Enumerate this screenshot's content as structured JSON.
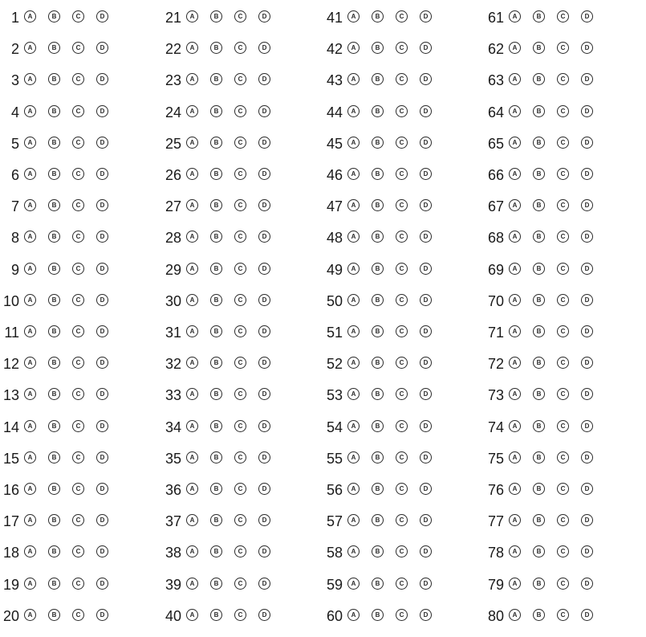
{
  "options": [
    "A",
    "B",
    "C",
    "D"
  ],
  "columns": [
    {
      "questions": [
        "1",
        "2",
        "3",
        "4",
        "5",
        "6",
        "7",
        "8",
        "9",
        "10",
        "11",
        "12",
        "13",
        "14",
        "15",
        "16",
        "17",
        "18",
        "19",
        "20"
      ]
    },
    {
      "questions": [
        "21",
        "22",
        "23",
        "24",
        "25",
        "26",
        "27",
        "28",
        "29",
        "30",
        "31",
        "32",
        "33",
        "34",
        "35",
        "36",
        "37",
        "38",
        "39",
        "40"
      ]
    },
    {
      "questions": [
        "41",
        "42",
        "43",
        "44",
        "45",
        "46",
        "47",
        "48",
        "49",
        "50",
        "51",
        "52",
        "53",
        "54",
        "55",
        "56",
        "57",
        "58",
        "59",
        "60"
      ]
    },
    {
      "questions": [
        "61",
        "62",
        "63",
        "64",
        "65",
        "66",
        "67",
        "68",
        "69",
        "70",
        "71",
        "72",
        "73",
        "74",
        "75",
        "76",
        "77",
        "78",
        "79",
        "80"
      ]
    }
  ]
}
